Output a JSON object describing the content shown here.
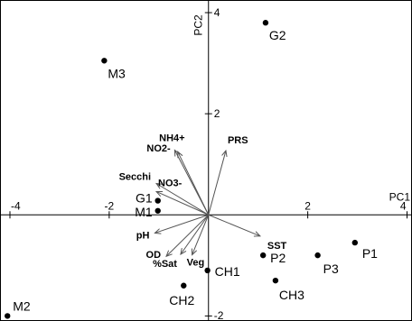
{
  "chart_data": {
    "type": "scatter",
    "xlabel": "PC1",
    "ylabel": "PC2",
    "xlim": [
      -4.2,
      4.1
    ],
    "ylim": [
      -2.1,
      4.25
    ],
    "x_ticks": [
      {
        "value": -4,
        "label": "-4"
      },
      {
        "value": -2,
        "label": "-2"
      },
      {
        "value": 2,
        "label": "2"
      },
      {
        "value": 4,
        "label": "4"
      }
    ],
    "y_ticks": [
      {
        "value": 4,
        "label": "4"
      },
      {
        "value": 2,
        "label": "2"
      },
      {
        "value": -2,
        "label": "-2"
      }
    ],
    "grid": false,
    "sites": [
      {
        "label": "G2",
        "x": 1.15,
        "y": 3.8
      },
      {
        "label": "M3",
        "x": -2.1,
        "y": 3.05
      },
      {
        "label": "G1",
        "x": -1.02,
        "y": 0.28
      },
      {
        "label": "M1",
        "x": -1.02,
        "y": 0.08
      },
      {
        "label": "P1",
        "x": 2.95,
        "y": -0.55
      },
      {
        "label": "P2",
        "x": 1.1,
        "y": -0.8
      },
      {
        "label": "P3",
        "x": 2.2,
        "y": -0.8
      },
      {
        "label": "CH1",
        "x": -0.02,
        "y": -1.1
      },
      {
        "label": "CH2",
        "x": -0.5,
        "y": -1.4
      },
      {
        "label": "CH3",
        "x": 1.35,
        "y": -1.3
      },
      {
        "label": "M2",
        "x": -4.05,
        "y": -2.0
      }
    ],
    "vectors": [
      {
        "label": "NH4+",
        "x": -0.68,
        "y": 1.28
      },
      {
        "label": "NO2-",
        "x": -0.62,
        "y": 1.25
      },
      {
        "label": "PRS",
        "x": 0.35,
        "y": 1.27
      },
      {
        "label": "Secchi",
        "x": -1.05,
        "y": 0.62
      },
      {
        "label": "NO3-",
        "x": -1.05,
        "y": 0.46
      },
      {
        "label": "pH",
        "x": -1.08,
        "y": -0.36
      },
      {
        "label": "OD",
        "x": -0.85,
        "y": -0.82
      },
      {
        "label": "%Sat",
        "x": -0.56,
        "y": -0.78
      },
      {
        "label": "Veg",
        "x": -0.33,
        "y": -0.79
      },
      {
        "label": "SST",
        "x": 1.04,
        "y": -0.42
      }
    ]
  }
}
